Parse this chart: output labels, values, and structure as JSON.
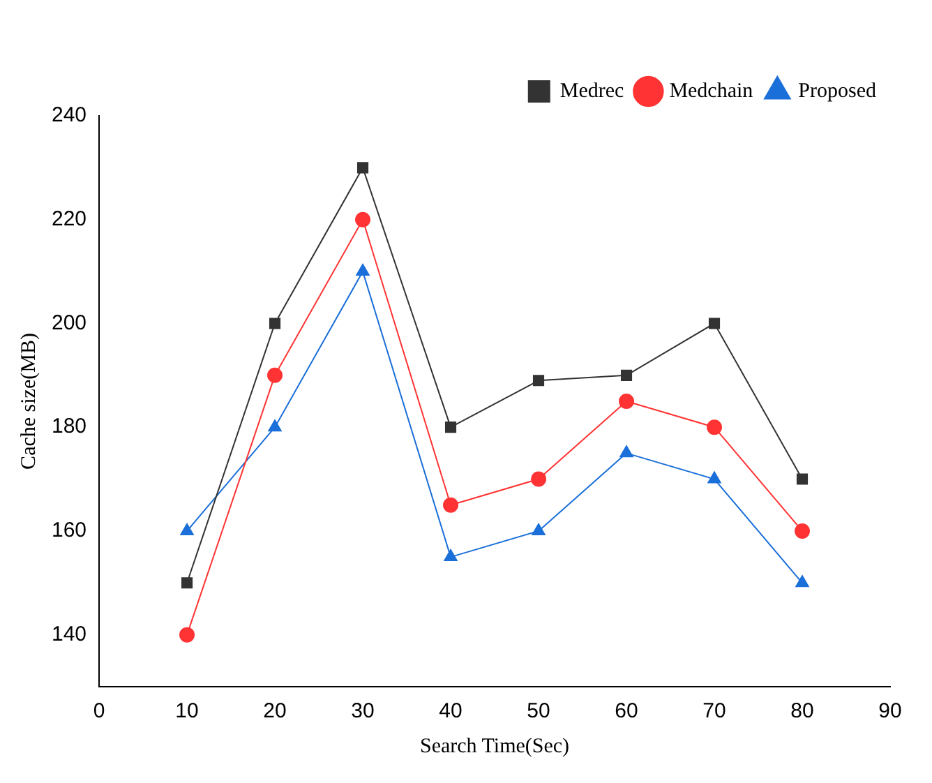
{
  "chart_data": {
    "type": "line",
    "xlabel": "Search Time(Sec)",
    "ylabel": "Cache size(MB)",
    "x": [
      10,
      20,
      30,
      40,
      50,
      60,
      70,
      80
    ],
    "xlim": [
      0,
      90
    ],
    "xticks": [
      0,
      10,
      20,
      30,
      40,
      50,
      60,
      70,
      80,
      90
    ],
    "ylim": [
      130,
      240
    ],
    "yticks": [
      140,
      160,
      180,
      200,
      220,
      240
    ],
    "series": [
      {
        "name": "Medrec",
        "color": "#333333",
        "marker": "square",
        "values": [
          150,
          200,
          230,
          180,
          189,
          190,
          200,
          170
        ]
      },
      {
        "name": "Medchain",
        "color": "#ff3333",
        "marker": "circle",
        "values": [
          140,
          190,
          220,
          165,
          170,
          185,
          180,
          160
        ]
      },
      {
        "name": "Proposed",
        "color": "#1a6fd9",
        "marker": "triangle",
        "values": [
          160,
          180,
          210,
          155,
          160,
          175,
          170,
          150
        ]
      }
    ],
    "legend": "top right",
    "grid": false,
    "line_style": "solid"
  }
}
